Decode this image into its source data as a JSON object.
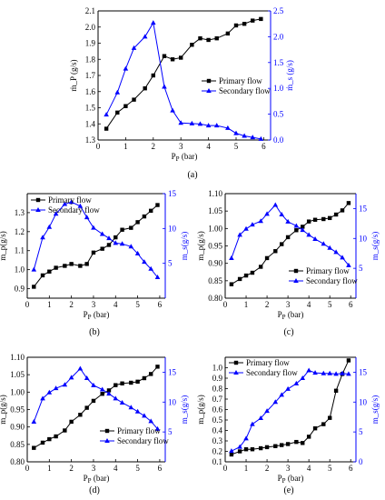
{
  "chart_data": [
    {
      "panel": "(a)",
      "type": "line",
      "xlabel": "P_P (bar)",
      "ylabel": "ṁ_P (g/s)",
      "y2label": "ṁ_s (g/s)",
      "xlim": [
        0,
        6.25
      ],
      "ylim": [
        1.3,
        2.1
      ],
      "y2lim": [
        0,
        2.5
      ],
      "xticks": [
        "0",
        "1",
        "2",
        "3",
        "4",
        "5",
        "6"
      ],
      "yticks": [
        "1.3",
        "1.4",
        "1.5",
        "1.6",
        "1.7",
        "1.8",
        "1.9",
        "2.0",
        "2.1"
      ],
      "y2ticks": [
        "0.0",
        "0.5",
        "1.0",
        "1.5",
        "2.0",
        "2.5"
      ],
      "legend_position": "center-right",
      "colors": {
        "primary": "#000000",
        "secondary": "#0000ff"
      },
      "series": [
        {
          "name": "Primary flow",
          "axis": "left",
          "marker": "square",
          "x": [
            0.3,
            0.7,
            1.0,
            1.3,
            1.7,
            2.0,
            2.4,
            2.7,
            3.0,
            3.4,
            3.7,
            4.0,
            4.3,
            4.7,
            5.0,
            5.3,
            5.6,
            5.9
          ],
          "y": [
            1.37,
            1.47,
            1.51,
            1.55,
            1.62,
            1.7,
            1.82,
            1.8,
            1.81,
            1.89,
            1.93,
            1.92,
            1.93,
            1.96,
            2.01,
            2.02,
            2.04,
            2.05
          ]
        },
        {
          "name": "Secondary flow",
          "axis": "right",
          "marker": "triangle",
          "x": [
            0.3,
            0.7,
            1.0,
            1.3,
            1.7,
            2.0,
            2.4,
            2.7,
            3.0,
            3.4,
            3.7,
            4.0,
            4.3,
            4.7,
            5.0,
            5.3,
            5.6,
            5.9
          ],
          "y": [
            0.49,
            0.92,
            1.38,
            1.78,
            2.0,
            2.27,
            1.03,
            0.57,
            0.33,
            0.32,
            0.31,
            0.28,
            0.28,
            0.23,
            0.13,
            0.08,
            0.05,
            0.02
          ]
        }
      ]
    },
    {
      "panel": "(b)",
      "type": "line",
      "xlabel": "P_P (bar)",
      "ylabel": "m_p(g/s)",
      "y2label": "m_s(g/s)",
      "xlim": [
        0,
        6.25
      ],
      "ylim": [
        0.85,
        1.4
      ],
      "y2lim": [
        0,
        15
      ],
      "xticks": [
        "0",
        "1",
        "2",
        "3",
        "4",
        "5",
        "6"
      ],
      "yticks": [
        "0.9",
        "1.0",
        "1.1",
        "1.2",
        "1.3"
      ],
      "y2ticks": [
        "5",
        "10",
        "15"
      ],
      "legend_position": "top-left",
      "colors": {
        "primary": "#000000",
        "secondary": "#0000ff"
      },
      "series": [
        {
          "name": "Primary flow",
          "axis": "left",
          "marker": "square",
          "x": [
            0.3,
            0.7,
            1.0,
            1.3,
            1.7,
            2.0,
            2.4,
            2.7,
            3.0,
            3.4,
            3.7,
            4.0,
            4.3,
            4.7,
            5.0,
            5.3,
            5.6,
            5.9
          ],
          "y": [
            0.91,
            0.97,
            0.99,
            1.01,
            1.02,
            1.03,
            1.02,
            1.03,
            1.09,
            1.11,
            1.13,
            1.17,
            1.21,
            1.22,
            1.25,
            1.28,
            1.31,
            1.34
          ]
        },
        {
          "name": "Secondary flow",
          "axis": "right",
          "marker": "triangle",
          "x": [
            0.3,
            0.7,
            1.0,
            1.3,
            1.7,
            2.0,
            2.4,
            2.7,
            3.0,
            3.4,
            3.7,
            4.0,
            4.3,
            4.7,
            5.0,
            5.3,
            5.6,
            5.9
          ],
          "y": [
            4.1,
            8.7,
            10.2,
            12.1,
            13.5,
            13.8,
            13.2,
            11.6,
            10.1,
            9.2,
            8.6,
            7.9,
            7.8,
            7.4,
            6.4,
            5.2,
            4.2,
            3.0
          ]
        }
      ]
    },
    {
      "panel": "(c)",
      "type": "line",
      "xlabel": "P_P (bar)",
      "ylabel": "m_p(g/s)",
      "y2label": "m_s(g/s)",
      "xlim": [
        0,
        6.25
      ],
      "ylim": [
        0.8,
        1.1
      ],
      "y2lim": [
        0,
        17.5
      ],
      "xticks": [
        "0",
        "1",
        "2",
        "3",
        "4",
        "5",
        "6"
      ],
      "yticks": [
        "0.80",
        "0.85",
        "0.90",
        "0.95",
        "1.00",
        "1.05",
        "1.10"
      ],
      "y2ticks": [
        "5",
        "10",
        "15"
      ],
      "legend_position": "lower-right",
      "colors": {
        "primary": "#000000",
        "secondary": "#0000ff"
      },
      "series": [
        {
          "name": "Primary flow",
          "axis": "left",
          "marker": "square",
          "x": [
            0.3,
            0.7,
            1.0,
            1.3,
            1.7,
            2.0,
            2.4,
            2.7,
            3.0,
            3.4,
            3.7,
            4.0,
            4.3,
            4.7,
            5.0,
            5.3,
            5.6,
            5.9
          ],
          "y": [
            0.84,
            0.855,
            0.865,
            0.873,
            0.89,
            0.915,
            0.935,
            0.955,
            0.975,
            0.995,
            1.005,
            1.02,
            1.025,
            1.027,
            1.03,
            1.04,
            1.052,
            1.073
          ]
        },
        {
          "name": "Secondary flow",
          "axis": "right",
          "marker": "triangle",
          "x": [
            0.3,
            0.7,
            1.0,
            1.3,
            1.7,
            2.0,
            2.4,
            2.7,
            3.0,
            3.4,
            3.7,
            4.0,
            4.3,
            4.7,
            5.0,
            5.3,
            5.6,
            5.9
          ],
          "y": [
            6.7,
            10.6,
            11.6,
            12.3,
            12.9,
            14.1,
            15.6,
            14.0,
            12.8,
            12.1,
            11.4,
            10.6,
            9.9,
            9.1,
            8.4,
            7.7,
            6.8,
            5.5
          ]
        }
      ]
    },
    {
      "panel": "(d)",
      "type": "line",
      "xlabel": "P_P (bar)",
      "ylabel": "m_p(g/s)",
      "y2label": "m_s(g/s)",
      "xlim": [
        0,
        6.25
      ],
      "ylim": [
        0.8,
        1.1
      ],
      "y2lim": [
        0,
        17.5
      ],
      "xticks": [
        "0",
        "1",
        "2",
        "3",
        "4",
        "5",
        "6"
      ],
      "yticks": [
        "0.80",
        "0.85",
        "0.90",
        "0.95",
        "1.00",
        "1.05",
        "1.10"
      ],
      "y2ticks": [
        "5",
        "10",
        "15"
      ],
      "legend_position": "lower-right",
      "colors": {
        "primary": "#000000",
        "secondary": "#0000ff"
      },
      "series": [
        {
          "name": "Primary flow",
          "axis": "left",
          "marker": "square",
          "x": [
            0.3,
            0.7,
            1.0,
            1.3,
            1.7,
            2.0,
            2.4,
            2.7,
            3.0,
            3.4,
            3.7,
            4.0,
            4.3,
            4.7,
            5.0,
            5.3,
            5.6,
            5.9
          ],
          "y": [
            0.84,
            0.855,
            0.865,
            0.873,
            0.89,
            0.915,
            0.935,
            0.955,
            0.975,
            0.995,
            1.005,
            1.02,
            1.025,
            1.027,
            1.03,
            1.04,
            1.052,
            1.073
          ]
        },
        {
          "name": "Secondary flow",
          "axis": "right",
          "marker": "triangle",
          "x": [
            0.3,
            0.7,
            1.0,
            1.3,
            1.7,
            2.0,
            2.4,
            2.7,
            3.0,
            3.4,
            3.7,
            4.0,
            4.3,
            4.7,
            5.0,
            5.3,
            5.6,
            5.9
          ],
          "y": [
            6.7,
            10.6,
            11.6,
            12.3,
            12.9,
            14.1,
            15.6,
            14.0,
            12.8,
            12.1,
            11.4,
            10.6,
            9.9,
            9.1,
            8.4,
            7.7,
            6.8,
            5.5
          ]
        }
      ]
    },
    {
      "panel": "(e)",
      "type": "line",
      "xlabel": "P_P (bar)",
      "ylabel": "m_p(g/s)",
      "y2label": "m_s(g/s)",
      "xlim": [
        0,
        6.25
      ],
      "ylim": [
        0.1,
        1.1
      ],
      "y2lim": [
        0,
        17.5
      ],
      "xticks": [
        "0",
        "1",
        "2",
        "3",
        "4",
        "5",
        "6"
      ],
      "yticks": [
        "0.1",
        "0.2",
        "0.3",
        "0.4",
        "0.5",
        "0.6",
        "0.7",
        "0.8",
        "0.9",
        "1.0"
      ],
      "y2ticks": [
        "0",
        "5",
        "10",
        "15"
      ],
      "legend_position": "top-left",
      "colors": {
        "primary": "#000000",
        "secondary": "#0000ff"
      },
      "series": [
        {
          "name": "Primary flow",
          "axis": "left",
          "marker": "square",
          "x": [
            0.3,
            0.7,
            1.0,
            1.3,
            1.7,
            2.0,
            2.4,
            2.7,
            3.0,
            3.4,
            3.7,
            4.0,
            4.3,
            4.7,
            5.0,
            5.3,
            5.6,
            5.9
          ],
          "y": [
            0.17,
            0.2,
            0.22,
            0.22,
            0.23,
            0.24,
            0.25,
            0.26,
            0.27,
            0.29,
            0.28,
            0.34,
            0.42,
            0.46,
            0.52,
            0.78,
            0.94,
            1.07
          ]
        },
        {
          "name": "Secondary flow",
          "axis": "right",
          "marker": "triangle",
          "x": [
            0.3,
            0.7,
            1.0,
            1.3,
            1.7,
            2.0,
            2.4,
            2.7,
            3.0,
            3.4,
            3.7,
            4.0,
            4.3,
            4.7,
            5.0,
            5.3,
            5.6,
            5.9
          ],
          "y": [
            1.8,
            2.5,
            3.9,
            6.3,
            7.3,
            8.5,
            10.0,
            11.2,
            12.2,
            13.1,
            14.0,
            15.3,
            14.9,
            14.8,
            14.8,
            14.7,
            14.8,
            14.7
          ]
        }
      ]
    }
  ]
}
